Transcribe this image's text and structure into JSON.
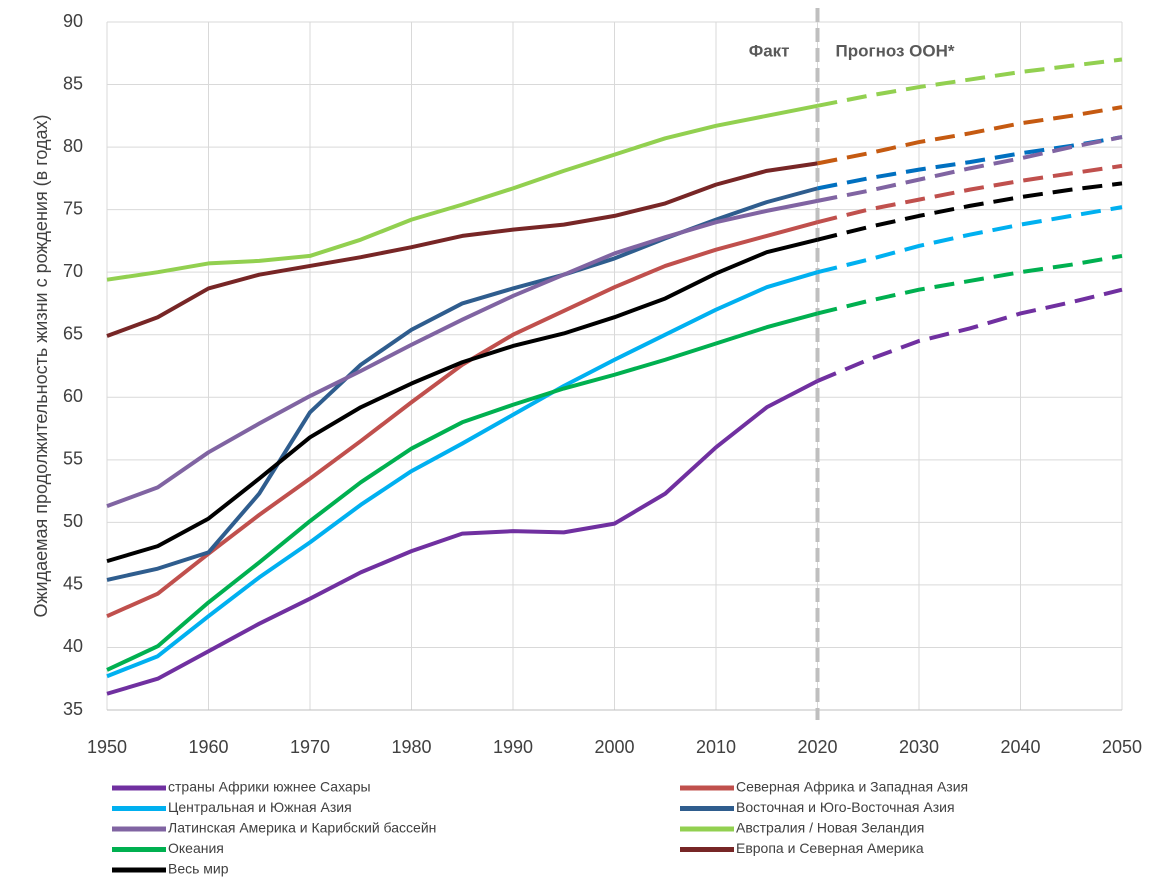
{
  "chart_data": {
    "type": "line",
    "ylabel": "Ожидаемая продолжительность жизни с рождения (в годах)",
    "annotations": [
      "Факт",
      "Прогноз ООН*"
    ],
    "forecast_start": 2020,
    "x": [
      1950,
      1955,
      1960,
      1965,
      1970,
      1975,
      1980,
      1985,
      1990,
      1995,
      2000,
      2005,
      2010,
      2015,
      2020,
      2025,
      2030,
      2035,
      2040,
      2045,
      2050
    ],
    "xlim": [
      1950,
      2050
    ],
    "xticks": [
      1950,
      1960,
      1970,
      1980,
      1990,
      2000,
      2010,
      2020,
      2030,
      2040,
      2050
    ],
    "ylim": [
      35,
      90
    ],
    "yticks": [
      35,
      40,
      45,
      50,
      55,
      60,
      65,
      70,
      75,
      80,
      85,
      90
    ],
    "grid": true,
    "series": [
      {
        "name": "страны Африки южнее Сахары",
        "color": "#7030a0",
        "forecast_color": "#7030a0",
        "values": [
          36.3,
          37.5,
          39.7,
          41.9,
          43.9,
          46.0,
          47.7,
          49.1,
          49.3,
          49.2,
          49.9,
          52.3,
          56.0,
          59.2,
          61.3,
          63.0,
          64.5,
          65.5,
          66.7,
          67.6,
          68.6
        ]
      },
      {
        "name": "Северная Африка и Западная Азия",
        "color": "#c0504d",
        "forecast_color": "#c0504d",
        "values": [
          42.5,
          44.3,
          47.5,
          50.6,
          53.5,
          56.5,
          59.6,
          62.6,
          65.0,
          66.9,
          68.8,
          70.5,
          71.8,
          72.9,
          74.0,
          75.0,
          75.8,
          76.6,
          77.3,
          77.9,
          78.5
        ]
      },
      {
        "name": "Центральная и Южная Азия",
        "color": "#00b0f0",
        "forecast_color": "#00b0f0",
        "values": [
          37.7,
          39.3,
          42.5,
          45.6,
          48.4,
          51.4,
          54.1,
          56.3,
          58.6,
          60.9,
          63.0,
          65.0,
          67.0,
          68.8,
          70.0,
          71.0,
          72.1,
          73.0,
          73.8,
          74.5,
          75.2
        ]
      },
      {
        "name": "Восточная и Юго-Восточная Азия",
        "color": "#2f5d8e",
        "forecast_color": "#0070c0",
        "values": [
          45.4,
          46.3,
          47.6,
          52.3,
          58.8,
          62.6,
          65.4,
          67.5,
          68.7,
          69.8,
          71.1,
          72.7,
          74.2,
          75.6,
          76.7,
          77.5,
          78.2,
          78.8,
          79.5,
          80.1,
          80.8
        ]
      },
      {
        "name": "Латинская Америка и Карибский бассейн",
        "color": "#8064a2",
        "forecast_color": "#8064a2",
        "values": [
          51.3,
          52.8,
          55.6,
          57.9,
          60.1,
          62.1,
          64.2,
          66.2,
          68.1,
          69.8,
          71.5,
          72.8,
          74.0,
          74.9,
          75.7,
          76.5,
          77.4,
          78.3,
          79.1,
          80.0,
          80.8
        ]
      },
      {
        "name": "Австралия / Новая Зеландия",
        "color": "#92d050",
        "forecast_color": "#92d050",
        "values": [
          69.4,
          70.0,
          70.7,
          70.9,
          71.3,
          72.6,
          74.2,
          75.4,
          76.7,
          78.1,
          79.4,
          80.7,
          81.7,
          82.5,
          83.3,
          84.1,
          84.8,
          85.4,
          86.0,
          86.5,
          87.0
        ]
      },
      {
        "name": "Океания",
        "color": "#00b050",
        "forecast_color": "#00b050",
        "values": [
          38.2,
          40.1,
          43.6,
          46.8,
          50.1,
          53.2,
          55.9,
          58.0,
          59.4,
          60.7,
          61.8,
          63.0,
          64.3,
          65.6,
          66.7,
          67.7,
          68.6,
          69.3,
          70.0,
          70.6,
          71.3
        ]
      },
      {
        "name": "Европа и Северная Америка",
        "color": "#772626",
        "forecast_color": "#c55a11",
        "values": [
          64.9,
          66.4,
          68.7,
          69.8,
          70.5,
          71.2,
          72.0,
          72.9,
          73.4,
          73.8,
          74.5,
          75.5,
          77.0,
          78.1,
          78.7,
          79.5,
          80.4,
          81.1,
          81.9,
          82.5,
          83.2
        ]
      },
      {
        "name": "Весь мир",
        "color": "#000000",
        "forecast_color": "#000000",
        "values": [
          46.9,
          48.1,
          50.3,
          53.5,
          56.8,
          59.2,
          61.1,
          62.8,
          64.1,
          65.1,
          66.4,
          67.9,
          69.9,
          71.6,
          72.6,
          73.6,
          74.5,
          75.3,
          76.0,
          76.6,
          77.1
        ]
      }
    ]
  }
}
